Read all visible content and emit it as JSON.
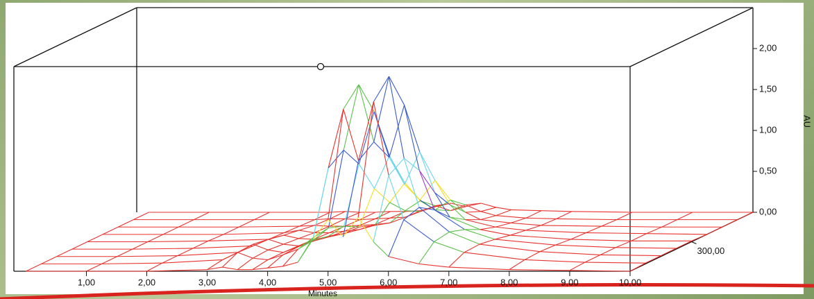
{
  "chart_data": {
    "type": "surface3d",
    "xlabel": "Minutes",
    "zlabel": "AU",
    "xlim": [
      -0.2,
      10
    ],
    "xticks": [
      {
        "value": 1,
        "label": "1,00"
      },
      {
        "value": 2,
        "label": "2,00"
      },
      {
        "value": 3,
        "label": "3,00"
      },
      {
        "value": 4,
        "label": "4,00"
      },
      {
        "value": 5,
        "label": "5,00"
      },
      {
        "value": 6,
        "label": "6,00"
      },
      {
        "value": 7,
        "label": "7,00"
      },
      {
        "value": 8,
        "label": "8,00"
      },
      {
        "value": 9,
        "label": "9,00"
      },
      {
        "value": 10,
        "label": "10,00"
      }
    ],
    "depthlim": [
      200,
      400
    ],
    "depthticks": [
      {
        "value": 300,
        "label": "300,00"
      }
    ],
    "zlim": [
      0,
      2.5
    ],
    "zticks": [
      {
        "value": 0,
        "label": "0,00"
      },
      {
        "value": 0.5,
        "label": "0,50"
      },
      {
        "value": 1,
        "label": "1,00"
      },
      {
        "value": 1.5,
        "label": "1,50"
      },
      {
        "value": 2,
        "label": "2,00"
      }
    ],
    "colorscale": {
      "step": 0.2,
      "colors": [
        "#e8322c",
        "#5cc24a",
        "#3a5bd0",
        "#f2e02a",
        "#a040c8",
        "#6ad6e8",
        "#3a5bd0",
        "#e8322c",
        "#3a5bd0",
        "#e8322c",
        "#5cc24a",
        "#3a5bd0",
        "#3a5bd0"
      ]
    },
    "x": [
      0,
      1,
      2,
      3,
      3.25,
      3.5,
      3.75,
      4,
      4.25,
      4.5,
      4.75,
      5,
      5.25,
      5.5,
      5.75,
      6,
      6.5,
      7,
      8,
      9,
      10
    ],
    "series": [
      {
        "depth": 200,
        "values": [
          0,
          0,
          0,
          0.02,
          0.05,
          0.02,
          0.02,
          0.04,
          0.06,
          0.11,
          0.39,
          0.63,
          0.42,
          0.66,
          0.36,
          0.18,
          0.09,
          0.05,
          0.02,
          0.01,
          0
        ]
      },
      {
        "depth": 225,
        "values": [
          0,
          0,
          0.01,
          0.05,
          0.14,
          0.07,
          0.05,
          0.11,
          0.18,
          0.32,
          1.17,
          1.89,
          1.26,
          1.98,
          1.08,
          0.54,
          0.27,
          0.14,
          0.05,
          0.02,
          0.01
        ]
      },
      {
        "depth": 250,
        "values": [
          0,
          0,
          0.01,
          0.05,
          0.15,
          0.08,
          0.05,
          0.12,
          0.2,
          0.35,
          1.3,
          2.1,
          1.4,
          2.2,
          1.2,
          0.6,
          0.3,
          0.15,
          0.06,
          0.02,
          0.01
        ]
      },
      {
        "depth": 275,
        "values": [
          0,
          0,
          0.01,
          0.04,
          0.12,
          0.06,
          0.04,
          0.1,
          0.16,
          0.28,
          1.04,
          1.68,
          1.12,
          1.76,
          0.96,
          0.48,
          0.24,
          0.12,
          0.05,
          0.02,
          0.01
        ]
      },
      {
        "depth": 300,
        "values": [
          0,
          0,
          0.01,
          0.03,
          0.08,
          0.04,
          0.03,
          0.06,
          0.1,
          0.18,
          0.65,
          1.05,
          0.7,
          1.1,
          0.6,
          0.3,
          0.15,
          0.08,
          0.03,
          0.01,
          0.01
        ]
      },
      {
        "depth": 325,
        "values": [
          0,
          0,
          0,
          0.02,
          0.05,
          0.02,
          0.02,
          0.04,
          0.06,
          0.11,
          0.39,
          0.63,
          0.42,
          0.66,
          0.36,
          0.18,
          0.09,
          0.05,
          0.02,
          0.01,
          0
        ]
      },
      {
        "depth": 350,
        "values": [
          0,
          0,
          0,
          0.01,
          0.02,
          0.01,
          0.01,
          0.02,
          0.03,
          0.05,
          0.2,
          0.32,
          0.21,
          0.33,
          0.18,
          0.09,
          0.05,
          0.02,
          0.01,
          0,
          0
        ]
      },
      {
        "depth": 375,
        "values": [
          0,
          0,
          0,
          0,
          0.01,
          0.01,
          0,
          0.01,
          0.02,
          0.03,
          0.1,
          0.17,
          0.11,
          0.18,
          0.1,
          0.05,
          0.02,
          0.01,
          0,
          0,
          0
        ]
      },
      {
        "depth": 400,
        "values": [
          0,
          0,
          0,
          0,
          0.01,
          0,
          0,
          0.01,
          0.01,
          0.02,
          0.07,
          0.11,
          0.07,
          0.11,
          0.06,
          0.03,
          0.02,
          0.01,
          0,
          0,
          0
        ]
      }
    ]
  }
}
